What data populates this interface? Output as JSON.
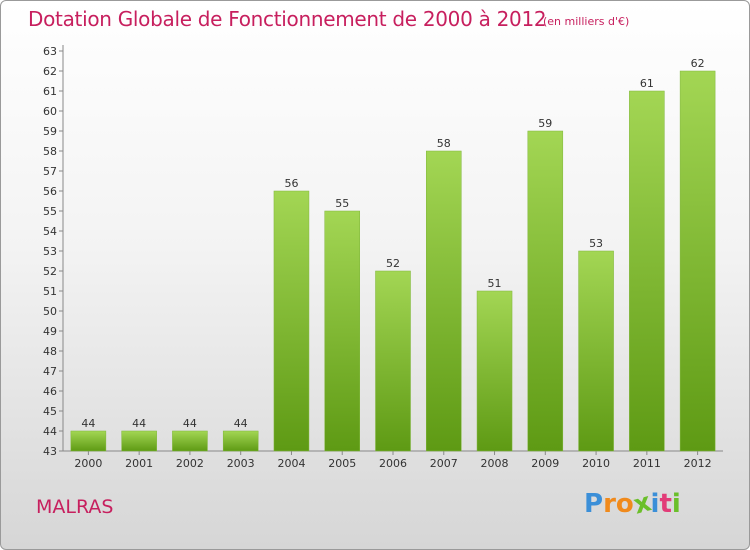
{
  "header": {
    "title": "Dotation Globale de Fonctionnement de 2000 à 2012",
    "unit": "(en milliers d'€)"
  },
  "footer": {
    "commune": "MALRAS",
    "logo_letters": [
      "P",
      "r",
      "o",
      "x",
      "i",
      "t",
      "i"
    ]
  },
  "colors": {
    "title": "#c71f5e",
    "bar_light": "#a3d654",
    "bar_dark": "#5e9a14",
    "logo": [
      "#3b8fd8",
      "#f08a1c",
      "#f08a1c",
      "#6bbf2a",
      "#3b8fd8",
      "#e23c78",
      "#6bbf2a"
    ]
  },
  "chart_data": {
    "type": "bar",
    "title": "Dotation Globale de Fonctionnement de 2000 à 2012",
    "subtitle": "(en milliers d'€)",
    "categories": [
      "2000",
      "2001",
      "2002",
      "2003",
      "2004",
      "2005",
      "2006",
      "2007",
      "2008",
      "2009",
      "2010",
      "2011",
      "2012"
    ],
    "values": [
      44,
      44,
      44,
      44,
      56,
      55,
      52,
      58,
      51,
      59,
      53,
      61,
      62
    ],
    "ylim": [
      43,
      63
    ],
    "yticks": [
      43,
      44,
      45,
      46,
      47,
      48,
      49,
      50,
      51,
      52,
      53,
      54,
      55,
      56,
      57,
      58,
      59,
      60,
      61,
      62,
      63
    ],
    "grid": false,
    "xlabel": "",
    "ylabel": ""
  }
}
